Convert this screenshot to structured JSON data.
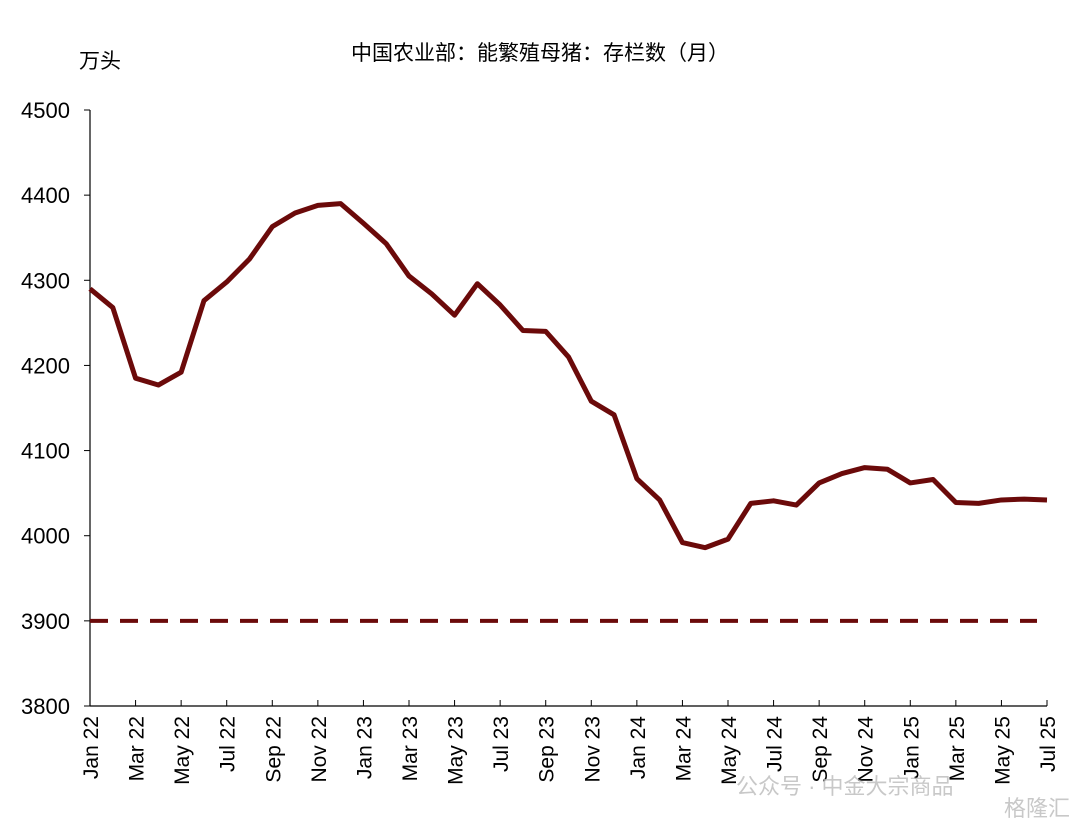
{
  "chart_data": {
    "type": "line",
    "title": "中国农业部：能繁殖母猪：存栏数（月）",
    "y_unit": "万头",
    "categories": [
      "Jan 22",
      null,
      "Mar 22",
      null,
      "May 22",
      null,
      "Jul 22",
      null,
      "Sep 22",
      null,
      "Nov 22",
      null,
      "Jan 23",
      null,
      "Mar 23",
      null,
      "May 23",
      null,
      "Jul 23",
      null,
      "Sep 23",
      null,
      "Nov 23",
      null,
      "Jan 24",
      null,
      "Mar 24",
      null,
      "May 24",
      null,
      "Jul 24",
      null,
      "Sep 24",
      null,
      "Nov 24",
      null,
      "Jan 25",
      null,
      "Mar 25",
      null,
      "May 25",
      null,
      "Jul 25"
    ],
    "series": [
      {
        "name": "能繁殖母猪存栏数",
        "color": "#6b0a0a",
        "values": [
          4290,
          4268,
          4185,
          4177,
          4192,
          4276,
          4298,
          4325,
          4363,
          4379,
          4388,
          4390,
          4367,
          4343,
          4305,
          4284,
          4259,
          4296,
          4271,
          4241,
          4240,
          4210,
          4158,
          4142,
          4067,
          4042,
          3992,
          3986,
          3996,
          4038,
          4041,
          4036,
          4062,
          4073,
          4080,
          4078,
          4062,
          4066,
          4039,
          4038,
          4042,
          4043,
          4042
        ]
      }
    ],
    "reference_line": {
      "value": 3900,
      "color": "#6b0a0a",
      "style": "dashed"
    },
    "ylim": [
      3800,
      4500
    ],
    "yticks": [
      3800,
      3900,
      4000,
      4100,
      4200,
      4300,
      4400,
      4500
    ],
    "grid": false,
    "watermark": [
      "公众号 · 中金大宗商品",
      "格隆汇"
    ]
  }
}
